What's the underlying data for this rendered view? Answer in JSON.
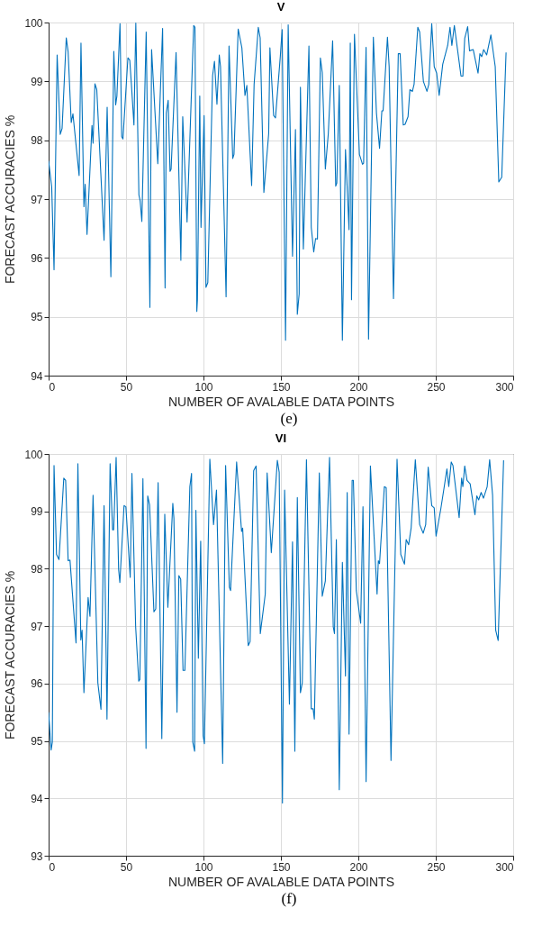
{
  "chart_data": [
    {
      "type": "line",
      "title": "V",
      "xlabel": "NUMBER OF AVALABLE DATA POINTS",
      "ylabel": "FORECAST ACCURACIES %",
      "annotations": [
        "(e)"
      ],
      "xlim": [
        0,
        300
      ],
      "xticks": [
        0,
        50,
        100,
        150,
        200,
        250,
        300
      ],
      "ylim": [
        94,
        100
      ],
      "yticks": [
        94,
        95,
        96,
        97,
        98,
        99,
        100
      ],
      "grid": true,
      "series": [
        {
          "color": "#0072bd",
          "x": [
            0,
            2,
            3.5,
            5.5,
            7.5,
            8.7,
            11.4,
            12.6,
            14.6,
            15.7,
            19.7,
            20.9,
            22.8,
            23.6,
            24.8,
            28,
            28.7,
            29.9,
            31.1,
            35.8,
            37.8,
            40.2,
            42.1,
            43.3,
            44.1,
            46.1,
            47.2,
            48,
            51.2,
            52.4,
            53.5,
            55.1,
            56.3,
            58.3,
            59.1,
            60.2,
            63,
            65.4,
            66.5,
            70.5,
            73.6,
            75.2,
            76,
            77.2,
            78.4,
            79.1,
            82.3,
            85.4,
            86.6,
            89.4,
            93.7,
            94.5,
            95.7,
            96.1,
            97.6,
            98.4,
            100.4,
            101.6,
            102.8,
            105.9,
            107.1,
            108.7,
            110.2,
            111,
            114.6,
            116.5,
            118.9,
            119.7,
            122.4,
            124.8,
            126.8,
            128,
            131.1,
            132.7,
            135.4,
            136.6,
            139,
            142.1,
            142.9,
            145.3,
            146.5,
            149.6,
            150.8,
            153,
            154.7,
            157.5,
            159.4,
            160.6,
            161.8,
            162.6,
            164.5,
            168.1,
            169.6,
            171.2,
            172.4,
            173.6,
            175.5,
            176.7,
            178.7,
            180.6,
            183.4,
            185.4,
            186.1,
            187.7,
            189.7,
            191.7,
            194,
            194.8,
            195.6,
            197.5,
            200.7,
            202.7,
            203.4,
            205,
            206.6,
            209.7,
            211.7,
            213.7,
            215.2,
            216,
            218.8,
            219.9,
            222.7,
            225.8,
            227,
            229,
            230.2,
            232.1,
            233.3,
            234.9,
            236,
            238.4,
            239.6,
            242,
            244.3,
            245.5,
            247.4,
            249,
            250.6,
            252.2,
            254.5,
            257.7,
            259.2,
            260.4,
            262,
            266.3,
            267.5,
            268.7,
            270.6,
            271.8,
            274.2,
            277.3,
            278.5,
            279.7,
            280.9,
            282.9,
            285.6,
            288.4,
            290.7,
            292.6,
            295.4
          ],
          "values": [
            97.65,
            97.2,
            95.8,
            99.45,
            98.1,
            98.2,
            99.74,
            99.5,
            98.3,
            98.45,
            97.4,
            99.65,
            96.87,
            97.25,
            96.4,
            98.25,
            97.95,
            98.96,
            98.86,
            96.3,
            98.56,
            95.68,
            99.51,
            98.6,
            98.75,
            99.98,
            98.06,
            98.02,
            99.4,
            99.36,
            98.93,
            98.26,
            99.99,
            97.07,
            96.97,
            96.62,
            99.84,
            95.16,
            99.54,
            97.6,
            99.9,
            95.49,
            98.46,
            98.68,
            97.47,
            97.51,
            99.49,
            95.96,
            98.4,
            96.61,
            99.95,
            99.92,
            95.09,
            95.29,
            98.75,
            96.52,
            98.42,
            95.5,
            95.58,
            99.1,
            99.34,
            98.61,
            99.45,
            99.25,
            95.34,
            99.6,
            97.69,
            97.76,
            99.89,
            99.57,
            98.76,
            98.93,
            97.23,
            98.95,
            99.92,
            99.74,
            97.11,
            98.11,
            99.57,
            98.42,
            98.38,
            99.42,
            99.88,
            94.6,
            99.96,
            96.03,
            98.18,
            95.04,
            95.39,
            98.9,
            96.15,
            99.6,
            96.52,
            96.1,
            96.33,
            96.32,
            99.4,
            99.15,
            97.51,
            98.11,
            99.69,
            97.22,
            97.27,
            98.93,
            94.6,
            97.84,
            96.48,
            99.65,
            95.29,
            99.8,
            97.76,
            97.59,
            97.61,
            99.58,
            94.62,
            99.75,
            98.46,
            97.86,
            98.5,
            98.5,
            99.75,
            99.25,
            95.31,
            99.47,
            99.47,
            98.26,
            98.27,
            98.4,
            98.86,
            98.83,
            98.95,
            99.92,
            99.84,
            99,
            98.83,
            98.95,
            99.98,
            99.25,
            99.14,
            98.76,
            99.29,
            99.61,
            99.92,
            99.61,
            99.95,
            99.09,
            99.09,
            99.73,
            99.93,
            99.52,
            99.54,
            99.14,
            99.47,
            99.42,
            99.54,
            99.45,
            99.79,
            99.25,
            97.29,
            97.37,
            99.49
          ]
        }
      ]
    },
    {
      "type": "line",
      "title": "VI",
      "xlabel": "NUMBER OF AVALABLE DATA POINTS",
      "ylabel": "FORECAST ACCURACIES %",
      "annotations": [
        "(f)"
      ],
      "xlim": [
        0,
        300
      ],
      "xticks": [
        0,
        50,
        100,
        150,
        200,
        250,
        300
      ],
      "ylim": [
        93,
        100
      ],
      "yticks": [
        93,
        94,
        95,
        96,
        97,
        98,
        99,
        100
      ],
      "grid": true,
      "series": [
        {
          "color": "#0072bd",
          "x": [
            0,
            1.6,
            2.4,
            3.5,
            5.1,
            6.7,
            9.8,
            11,
            12.6,
            13.8,
            17.7,
            18.9,
            20.8,
            21.6,
            22.8,
            25.5,
            26.7,
            28.7,
            31.8,
            33.8,
            35.8,
            37.7,
            39.7,
            41.3,
            42,
            43.6,
            45.2,
            46,
            48.7,
            49.9,
            52.7,
            53.8,
            56.2,
            58.2,
            58.9,
            60.9,
            62.9,
            64,
            65.2,
            68,
            69.2,
            70.7,
            73.1,
            75,
            77,
            80.2,
            80.9,
            82.9,
            84.1,
            85.3,
            86.8,
            88,
            91.2,
            92.3,
            93.1,
            94.3,
            95.1,
            96.7,
            98.2,
            99.8,
            100.6,
            104.1,
            106.5,
            108.4,
            112.4,
            114.3,
            116.7,
            117.5,
            121.4,
            124.6,
            125.3,
            128.9,
            130.1,
            132.4,
            134,
            136.7,
            139.9,
            141.1,
            143.8,
            147.7,
            148.9,
            151,
            152.4,
            155.5,
            157.5,
            159,
            160.6,
            162.6,
            163.8,
            166.5,
            169.6,
            170.8,
            171.6,
            174.8,
            176.7,
            178.7,
            181.4,
            183.8,
            184.6,
            185.8,
            187.7,
            189.7,
            191.7,
            192.8,
            194,
            196,
            196.8,
            198.7,
            201.5,
            203,
            205,
            207.8,
            212.1,
            212.9,
            213.7,
            216.8,
            218,
            221.1,
            225,
            227.4,
            229.8,
            230.9,
            232.5,
            234.1,
            236.8,
            239.6,
            241.9,
            243.5,
            245.1,
            247.4,
            249,
            250.2,
            253.3,
            255.3,
            257.2,
            258.4,
            260,
            261.1,
            265.1,
            266.7,
            267.5,
            268.7,
            270.2,
            272.2,
            275.3,
            276.5,
            277.7,
            279.3,
            280.8,
            283.2,
            284.8,
            286.7,
            288.7,
            290.3,
            293.8
          ],
          "values": [
            95.5,
            94.84,
            94.98,
            99.8,
            98.25,
            98.16,
            99.58,
            99.54,
            98.14,
            98.15,
            96.71,
            99.83,
            96.76,
            96.93,
            95.84,
            97.5,
            97.17,
            99.28,
            96.01,
            95.55,
            99.1,
            95.38,
            99.83,
            98.68,
            98.68,
            99.94,
            97.99,
            97.76,
            99.1,
            99.08,
            97.85,
            99.66,
            96.99,
            96.04,
            96.07,
            99.57,
            94.87,
            99.27,
            99.11,
            97.25,
            97.3,
            99.5,
            95.04,
            98.95,
            97.33,
            99.14,
            98.88,
            95.5,
            97.88,
            97.82,
            96.23,
            96.23,
            99.43,
            99.66,
            94.98,
            94.82,
            99.02,
            96.44,
            98.48,
            95.09,
            94.95,
            99.91,
            98.77,
            99.37,
            94.61,
            99.8,
            97.68,
            97.62,
            99.86,
            98.65,
            98.71,
            96.66,
            96.73,
            99.71,
            99.79,
            96.87,
            97.56,
            99.67,
            98.28,
            99.89,
            99.68,
            93.92,
            99.37,
            95.64,
            98.47,
            94.82,
            99.24,
            95.84,
            96.01,
            99.9,
            95.56,
            95.56,
            95.38,
            99.67,
            97.52,
            97.79,
            99.94,
            96.99,
            96.87,
            98.51,
            94.15,
            98.11,
            96.13,
            99.33,
            95.12,
            99.54,
            99.54,
            97.62,
            97.05,
            99.08,
            94.29,
            99.79,
            97.56,
            98.14,
            98.09,
            99.43,
            99.41,
            94.66,
            99.91,
            98.25,
            98.08,
            98.51,
            98.42,
            98.71,
            99.9,
            98.77,
            98.62,
            98.77,
            99.77,
            99.1,
            99.06,
            98.57,
            99.05,
            99.4,
            99.74,
            99.43,
            99.86,
            99.8,
            98.89,
            99.58,
            99.43,
            99.79,
            99.54,
            99.48,
            98.94,
            99.27,
            99.2,
            99.33,
            99.23,
            99.43,
            99.9,
            99.28,
            96.93,
            96.75,
            99.89
          ]
        }
      ]
    }
  ]
}
